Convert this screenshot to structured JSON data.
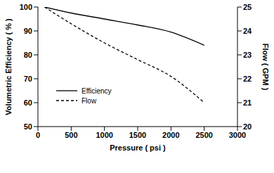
{
  "chart_data": {
    "type": "line",
    "x_label": "Pressure ( psi )",
    "y_label": "Volumetric Efficiency ( % )",
    "y2_label": "Flow ( GPM )",
    "x": [
      100,
      500,
      1000,
      1500,
      2000,
      2500
    ],
    "series": [
      {
        "name": "Efficiency",
        "color": "#000000",
        "line_style": "solid",
        "values": [
          100,
          97.5,
          95,
          92.5,
          89.5,
          84
        ]
      },
      {
        "name": "Flow",
        "color": "#000000",
        "line_style": "dashed",
        "axis": "y2",
        "values": [
          25,
          24.3,
          23.5,
          22.8,
          22.1,
          21
        ]
      }
    ],
    "xlim": [
      0,
      3000
    ],
    "xticks": [
      0,
      500,
      1000,
      1500,
      2000,
      2500,
      3000
    ],
    "ylim": [
      50,
      100
    ],
    "yticks": [
      50,
      60,
      70,
      80,
      90,
      100
    ],
    "y2lim": [
      20,
      25
    ],
    "y2ticks": [
      20,
      21,
      22,
      23,
      24,
      25
    ],
    "legend": "left"
  }
}
